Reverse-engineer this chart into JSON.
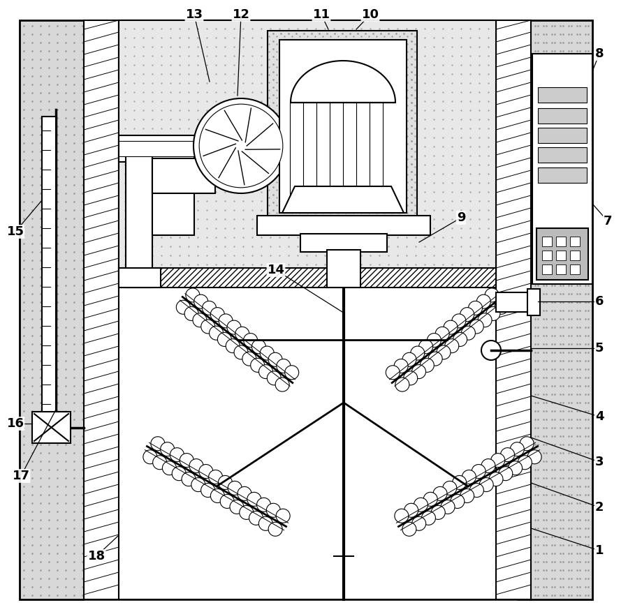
{
  "figsize": [
    9.09,
    8.77
  ],
  "dpi": 100,
  "bg_outer": "#e0e0e0",
  "bg_inner_top": "#e8e8e8",
  "lw_main": 1.5,
  "lw_thin": 0.8,
  "dot_color": "#aaaaaa",
  "hatch_color": "#555555"
}
